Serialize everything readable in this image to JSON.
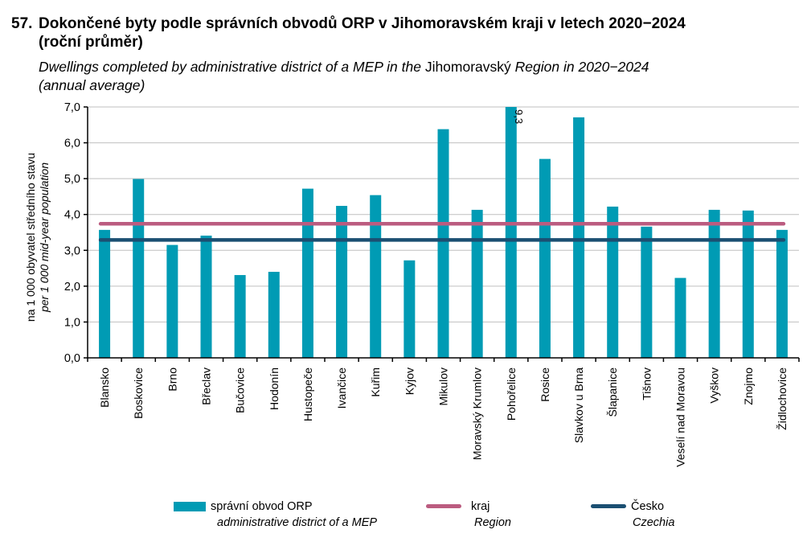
{
  "title": {
    "number": "57.",
    "line1": "Dokončené byty podle správních obvodů ORP v Jihomoravském kraji v letech 2020−2024",
    "line2": "(roční průměr)"
  },
  "subtitle": {
    "part1": "Dwellings completed by administrative district of a MEP in the ",
    "region": "Jihomoravský",
    "part2": " Region in 2020−2024",
    "line2": "(annual average)"
  },
  "colors": {
    "bars": "#009bb4",
    "region": "#bb5c80",
    "czechia": "#1b4f72",
    "grid": "#bfbfbf"
  },
  "legend": [
    {
      "label": "správní obvod ORP",
      "label_en": "administrative district of a MEP",
      "type": "bar"
    },
    {
      "label": "kraj",
      "label_en": "Region",
      "type": "line"
    },
    {
      "label": "Česko",
      "label_en": "Czechia",
      "type": "line"
    }
  ],
  "chart_data": {
    "type": "bar",
    "title": "Dokončené byty podle správních obvodů ORP v Jihomoravském kraji v letech 2020−2024 (roční průměr)",
    "xlabel": "",
    "ylabel": "na 1 000 obyvatel středního stavu",
    "ylabel_en": "per 1 000 mid-year population",
    "ylim": [
      0,
      7
    ],
    "yticks": [
      "0,0",
      "1,0",
      "2,0",
      "3,0",
      "4,0",
      "5,0",
      "6,0",
      "7,0"
    ],
    "grid": true,
    "legend_position": "bottom",
    "categories": [
      "Blansko",
      "Boskovice",
      "Brno",
      "Břeclav",
      "Bučovice",
      "Hodonín",
      "Hustopeče",
      "Ivančice",
      "Kuřim",
      "Kyjov",
      "Mikulov",
      "Moravský  Krumlov",
      "Pohořelice",
      "Rosice",
      "Slavkov  u Brna",
      "Šlapanice",
      "Tišnov",
      "Veselí  nad Moravou",
      "Vyškov",
      "Znojmo",
      "Židlochovice"
    ],
    "series": [
      {
        "name": "správní obvod ORP",
        "type": "bar",
        "values": [
          3.57,
          4.99,
          3.15,
          3.41,
          2.31,
          2.4,
          4.72,
          4.24,
          4.54,
          2.72,
          6.38,
          4.13,
          9.3,
          5.55,
          6.71,
          4.22,
          3.66,
          2.23,
          4.13,
          4.11,
          3.57
        ]
      },
      {
        "name": "kraj",
        "type": "line",
        "value": 3.74
      },
      {
        "name": "Česko",
        "type": "line",
        "value": 3.29
      }
    ],
    "annotations": [
      {
        "category": "Pohořelice",
        "text": "9,3",
        "note": "bar clipped at axis max"
      }
    ]
  }
}
